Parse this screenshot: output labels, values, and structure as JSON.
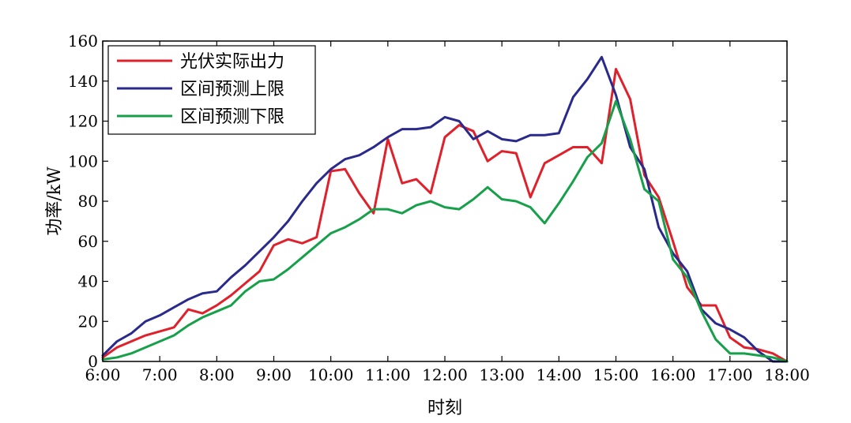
{
  "chart_data": {
    "type": "line",
    "title": "",
    "xlabel": "时刻",
    "ylabel": "功率/kW",
    "xlim": [
      "6:00",
      "18:00"
    ],
    "ylim": [
      0,
      160
    ],
    "x_tick_labels": [
      "6:00",
      "7:00",
      "8:00",
      "9:00",
      "10:00",
      "11:00",
      "12:00",
      "13:00",
      "14:00",
      "15:00",
      "16:00",
      "17:00",
      "18:00"
    ],
    "y_tick_labels": [
      "0",
      "20",
      "40",
      "60",
      "80",
      "100",
      "120",
      "140",
      "160"
    ],
    "y_ticks": [
      0,
      20,
      40,
      60,
      80,
      100,
      120,
      140,
      160
    ],
    "grid": false,
    "legend_position": "top-left",
    "series": [
      {
        "name": "光伏实际出力",
        "color": "#e0202a",
        "x": [
          "6:00",
          "6:15",
          "6:30",
          "6:45",
          "7:00",
          "7:15",
          "7:30",
          "7:45",
          "8:00",
          "8:15",
          "8:30",
          "8:45",
          "9:00",
          "9:15",
          "9:30",
          "9:45",
          "10:00",
          "10:15",
          "10:30",
          "10:45",
          "11:00",
          "11:15",
          "11:30",
          "11:45",
          "12:00",
          "12:15",
          "12:30",
          "12:45",
          "13:00",
          "13:15",
          "13:30",
          "13:45",
          "14:00",
          "14:15",
          "14:30",
          "14:45",
          "15:00",
          "15:15",
          "15:30",
          "15:45",
          "16:00",
          "16:15",
          "16:30",
          "16:45",
          "17:00",
          "17:15",
          "17:30",
          "17:45",
          "18:00"
        ],
        "values": [
          2,
          7,
          10,
          13,
          15,
          17,
          26,
          24,
          28,
          33,
          39,
          45,
          58,
          61,
          59,
          62,
          95,
          96,
          84,
          74,
          111,
          89,
          91,
          84,
          112,
          118,
          115,
          100,
          105,
          104,
          82,
          99,
          103,
          107,
          107,
          99,
          146,
          131,
          93,
          82,
          60,
          37,
          28,
          28,
          12,
          7,
          6,
          4,
          0
        ]
      },
      {
        "name": "区间预测上限",
        "color": "#2a2a8c",
        "x": [
          "6:00",
          "6:15",
          "6:30",
          "6:45",
          "7:00",
          "7:15",
          "7:30",
          "7:45",
          "8:00",
          "8:15",
          "8:30",
          "8:45",
          "9:00",
          "9:15",
          "9:30",
          "9:45",
          "10:00",
          "10:15",
          "10:30",
          "10:45",
          "11:00",
          "11:15",
          "11:30",
          "11:45",
          "12:00",
          "12:15",
          "12:30",
          "12:45",
          "13:00",
          "13:15",
          "13:30",
          "13:45",
          "14:00",
          "14:15",
          "14:30",
          "14:45",
          "15:00",
          "15:15",
          "15:30",
          "15:45",
          "16:00",
          "16:15",
          "16:30",
          "16:45",
          "17:00",
          "17:15",
          "17:30",
          "17:45",
          "18:00"
        ],
        "values": [
          3,
          10,
          14,
          20,
          23,
          27,
          31,
          34,
          35,
          42,
          48,
          55,
          62,
          70,
          80,
          89,
          96,
          101,
          103,
          107,
          112,
          116,
          116,
          117,
          122,
          120,
          111,
          115,
          111,
          110,
          113,
          113,
          114,
          132,
          141,
          152,
          133,
          107,
          96,
          67,
          54,
          45,
          26,
          19,
          16,
          12,
          5,
          0,
          0
        ]
      },
      {
        "name": "区间预测下限",
        "color": "#16a04a",
        "x": [
          "6:00",
          "6:15",
          "6:30",
          "6:45",
          "7:00",
          "7:15",
          "7:30",
          "7:45",
          "8:00",
          "8:15",
          "8:30",
          "8:45",
          "9:00",
          "9:15",
          "9:30",
          "9:45",
          "10:00",
          "10:15",
          "10:30",
          "10:45",
          "11:00",
          "11:15",
          "11:30",
          "11:45",
          "12:00",
          "12:15",
          "12:30",
          "12:45",
          "13:00",
          "13:15",
          "13:30",
          "13:45",
          "14:00",
          "14:15",
          "14:30",
          "14:45",
          "15:00",
          "15:15",
          "15:30",
          "15:45",
          "16:00",
          "16:15",
          "16:30",
          "16:45",
          "17:00",
          "17:15",
          "17:30",
          "17:45",
          "18:00"
        ],
        "values": [
          1,
          2,
          4,
          7,
          10,
          13,
          18,
          22,
          25,
          28,
          35,
          40,
          41,
          46,
          52,
          58,
          64,
          67,
          71,
          76,
          76,
          74,
          78,
          80,
          77,
          76,
          81,
          87,
          81,
          80,
          77,
          69,
          79,
          90,
          102,
          109,
          130,
          111,
          86,
          80,
          51,
          42,
          25,
          11,
          4,
          4,
          3,
          2,
          0
        ]
      }
    ]
  }
}
